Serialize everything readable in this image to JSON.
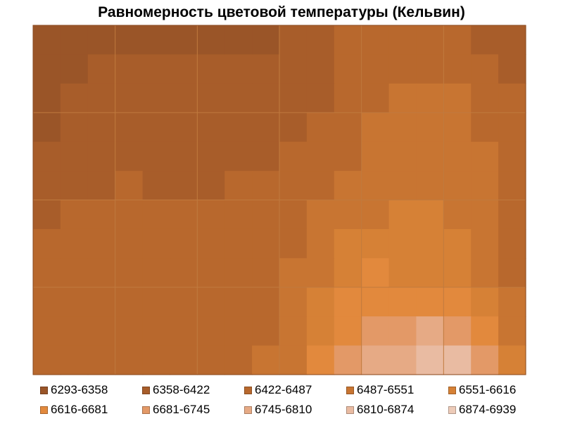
{
  "chart_data": {
    "type": "heatmap",
    "title": "Равномерность цветовой температуры (Кельвин)",
    "xlabel": "",
    "ylabel": "",
    "grid": true,
    "legend_position": "bottom",
    "description_of_values": "Color temperature in Kelvin sampled on a 7x5 grid; displayed as filled contour bands",
    "columns": 7,
    "rows": 5,
    "values": [
      [
        6300,
        6345,
        6345,
        6345,
        6440,
        6455,
        6360
      ],
      [
        6330,
        6400,
        6410,
        6370,
        6480,
        6525,
        6420
      ],
      [
        6410,
        6430,
        6420,
        6450,
        6520,
        6560,
        6450
      ],
      [
        6440,
        6450,
        6440,
        6480,
        6645,
        6590,
        6470
      ],
      [
        6420,
        6450,
        6450,
        6510,
        6750,
        6930,
        6520
      ]
    ],
    "levels": [
      {
        "label": "6293-6358",
        "color": "#9a5528"
      },
      {
        "label": "6358-6422",
        "color": "#a85d2a"
      },
      {
        "label": "6422-6487",
        "color": "#b8682d"
      },
      {
        "label": "6487-6551",
        "color": "#c87532"
      },
      {
        "label": "6551-6616",
        "color": "#d68136"
      },
      {
        "label": "6616-6681",
        "color": "#e2893d"
      },
      {
        "label": "6681-6745",
        "color": "#e39967"
      },
      {
        "label": "6745-6810",
        "color": "#e6aa85"
      },
      {
        "label": "6810-6874",
        "color": "#e9bba2"
      },
      {
        "label": "6874-6939",
        "color": "#edcbb8"
      }
    ]
  }
}
